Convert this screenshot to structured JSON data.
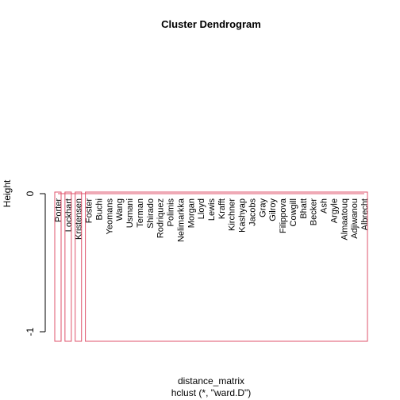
{
  "chart_data": {
    "type": "dendrogram",
    "title": "Cluster Dendrogram",
    "ylabel": "Height",
    "xlabel": "distance_matrix",
    "subtitle": "hclust (*, \"ward.D\")",
    "ylim": [
      -1,
      0
    ],
    "yticks": [
      0,
      -1
    ],
    "leaves": [
      "Porter",
      "Lockhart",
      "Kristensen",
      "Foster",
      "Buchi",
      "Yeomans",
      "Wang",
      "Usmani",
      "Terman",
      "Shirado",
      "Rodriquez",
      "Polimis",
      "Nelimarkka",
      "Morgan",
      "Lloyd",
      "Lewis",
      "Krafft",
      "Kirchner",
      "Kashyap",
      "Jacobs",
      "Gray",
      "Gilroy",
      "Filippova",
      "Cowgill",
      "Bhatt",
      "Becker",
      "Ash",
      "Argyle",
      "Almaatouq",
      "Adjiwanou",
      "Albrecht"
    ],
    "merge_height": 0,
    "clusters": [
      {
        "from": 0,
        "to": 0,
        "color": "#df536b"
      },
      {
        "from": 1,
        "to": 1,
        "color": "#df536b"
      },
      {
        "from": 2,
        "to": 2,
        "color": "#df536b"
      },
      {
        "from": 3,
        "to": 30,
        "color": "#df536b"
      }
    ],
    "link_color": "#df536b",
    "axis_color": "#000000"
  }
}
